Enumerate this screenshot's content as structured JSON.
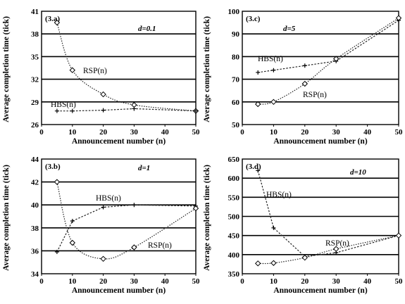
{
  "chart_data": [
    {
      "type": "line",
      "panel_label": "(3.a)",
      "parameter": "d=0.1",
      "xlabel": "Announcement number (n)",
      "ylabel": "Average completion time (tick)",
      "xlim": [
        0,
        50
      ],
      "ylim": [
        26,
        41
      ],
      "xticks": [
        0,
        10,
        20,
        30,
        40,
        50
      ],
      "yticks": [
        26,
        29,
        32,
        35,
        38,
        41
      ],
      "grid": "horizontal",
      "series": [
        {
          "name": "RSP(n)",
          "x": [
            5,
            10,
            20,
            30,
            50
          ],
          "values": [
            39.5,
            33.2,
            30.0,
            28.6,
            27.8
          ]
        },
        {
          "name": "HBS(n)",
          "x": [
            5,
            10,
            20,
            30,
            50
          ],
          "values": [
            27.8,
            27.8,
            27.9,
            28.1,
            27.8
          ]
        }
      ]
    },
    {
      "type": "line",
      "panel_label": "(3.c)",
      "parameter": "d=5",
      "xlabel": "Announcement number (n)",
      "ylabel": "Average completion time (tick)",
      "xlim": [
        0,
        50
      ],
      "ylim": [
        50,
        100
      ],
      "xticks": [
        0,
        10,
        20,
        30,
        40,
        50
      ],
      "yticks": [
        50,
        60,
        70,
        80,
        90,
        100
      ],
      "grid": "horizontal",
      "series": [
        {
          "name": "HBS(n)",
          "x": [
            5,
            10,
            20,
            30,
            50
          ],
          "values": [
            73,
            74,
            76,
            78,
            96
          ]
        },
        {
          "name": "RSP(n)",
          "x": [
            5,
            10,
            20,
            30,
            50
          ],
          "values": [
            59,
            60,
            68,
            79,
            97
          ]
        }
      ]
    },
    {
      "type": "line",
      "panel_label": "(3.b)",
      "parameter": "d=1",
      "xlabel": "Announcement number (n)",
      "ylabel": "Average completion time (tick)",
      "xlim": [
        0,
        50
      ],
      "ylim": [
        34,
        44
      ],
      "xticks": [
        0,
        10,
        20,
        30,
        40,
        50
      ],
      "yticks": [
        34,
        36,
        38,
        40,
        42,
        44
      ],
      "grid": "horizontal",
      "series": [
        {
          "name": "HBS(n)",
          "x": [
            5,
            10,
            20,
            30,
            50
          ],
          "values": [
            35.9,
            38.6,
            39.8,
            40.0,
            39.9
          ]
        },
        {
          "name": "RSP(n)",
          "x": [
            5,
            10,
            20,
            30,
            50
          ],
          "values": [
            42.0,
            36.7,
            35.3,
            36.3,
            39.7
          ]
        }
      ]
    },
    {
      "type": "line",
      "panel_label": "(3.d)",
      "parameter": "d=10",
      "xlabel": "Announcement number (n)",
      "ylabel": "Average completion time (tick)",
      "xlim": [
        0,
        50
      ],
      "ylim": [
        350,
        650
      ],
      "xticks": [
        0,
        10,
        20,
        30,
        40,
        50
      ],
      "yticks": [
        350,
        400,
        450,
        500,
        550,
        600,
        650
      ],
      "grid": "horizontal",
      "series": [
        {
          "name": "HBS(n)",
          "x": [
            5,
            10,
            20,
            30,
            50
          ],
          "values": [
            620,
            470,
            395,
            405,
            450
          ]
        },
        {
          "name": "RSP(n)",
          "x": [
            5,
            10,
            20,
            30,
            50
          ],
          "values": [
            377,
            378,
            392,
            415,
            450
          ]
        }
      ]
    }
  ]
}
